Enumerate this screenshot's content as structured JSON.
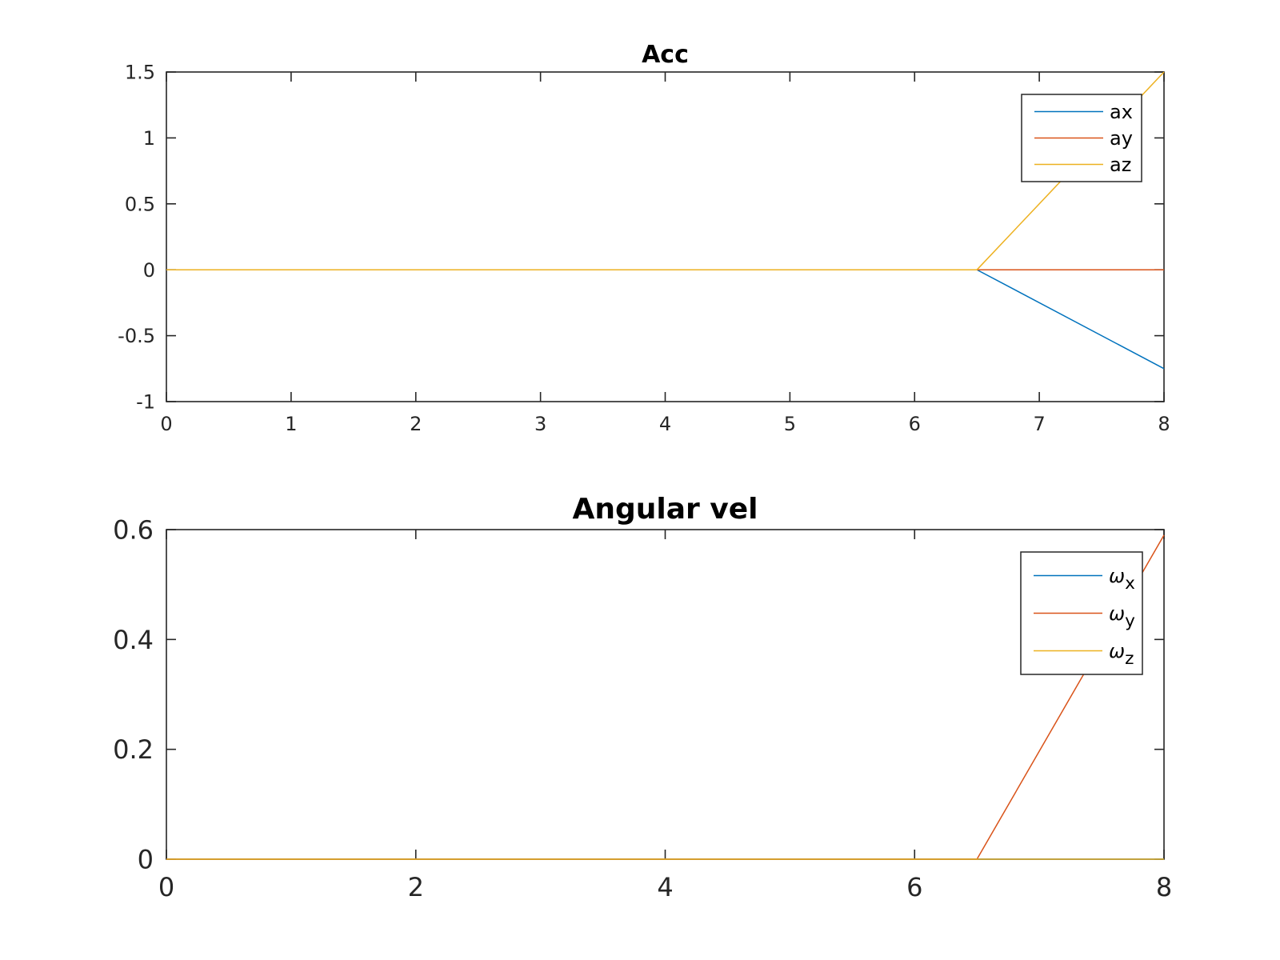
{
  "chart_data": [
    {
      "type": "line",
      "title": "Acc",
      "xlabel": "",
      "ylabel": "",
      "xlim": [
        0,
        8
      ],
      "ylim": [
        -1,
        1.5
      ],
      "xticks": [
        0,
        1,
        2,
        3,
        4,
        5,
        6,
        7,
        8
      ],
      "xtick_labels": [
        "0",
        "1",
        "2",
        "3",
        "4",
        "5",
        "6",
        "7",
        "8"
      ],
      "yticks": [
        -1,
        -0.5,
        0,
        0.5,
        1,
        1.5
      ],
      "ytick_labels": [
        "-1",
        "-0.5",
        "0",
        "0.5",
        "1",
        "1.5"
      ],
      "grid": false,
      "legend_position": "top-right",
      "series": [
        {
          "name": "ax",
          "color": "#0072BD",
          "x": [
            0,
            6.5,
            8
          ],
          "y": [
            0,
            0,
            -0.75
          ]
        },
        {
          "name": "ay",
          "color": "#D95319",
          "x": [
            0,
            6.5,
            8
          ],
          "y": [
            0,
            0,
            0
          ]
        },
        {
          "name": "az",
          "color": "#EDB120",
          "x": [
            0,
            6.5,
            8
          ],
          "y": [
            0,
            0,
            1.5
          ]
        }
      ]
    },
    {
      "type": "line",
      "title": "Angular vel",
      "xlabel": "",
      "ylabel": "",
      "xlim": [
        0,
        8
      ],
      "ylim": [
        0,
        0.6
      ],
      "xticks": [
        0,
        2,
        4,
        6,
        8
      ],
      "xtick_labels": [
        "0",
        "2",
        "4",
        "6",
        "8"
      ],
      "yticks": [
        0,
        0.2,
        0.4,
        0.6
      ],
      "ytick_labels": [
        "0",
        "0.2",
        "0.4",
        "0.6"
      ],
      "grid": false,
      "legend_position": "top-right",
      "series": [
        {
          "name": "ωx",
          "symbol": "ω",
          "subscript": "x",
          "color": "#0072BD",
          "x": [
            0,
            6.5,
            8
          ],
          "y": [
            0,
            0,
            0
          ]
        },
        {
          "name": "ωy",
          "symbol": "ω",
          "subscript": "y",
          "color": "#D95319",
          "x": [
            0,
            6.5,
            8
          ],
          "y": [
            0,
            0,
            0.59
          ]
        },
        {
          "name": "ωz",
          "symbol": "ω",
          "subscript": "z",
          "color": "#EDB120",
          "x": [
            0,
            6.5,
            8
          ],
          "y": [
            0,
            0,
            0
          ]
        }
      ]
    }
  ]
}
